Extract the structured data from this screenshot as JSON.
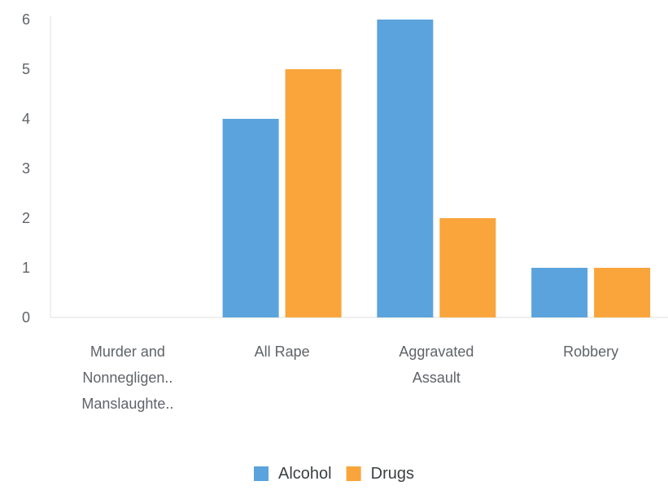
{
  "chart_data": {
    "type": "bar",
    "categories": [
      [
        "Murder and",
        "Nonnegligen..",
        "Manslaughte.."
      ],
      [
        "All Rape"
      ],
      [
        "Aggravated",
        "Assault"
      ],
      [
        "Robbery"
      ]
    ],
    "series": [
      {
        "name": "Alcohol",
        "color": "#5ba3dc",
        "values": [
          0,
          4,
          6,
          1
        ]
      },
      {
        "name": "Drugs",
        "color": "#f9a53b",
        "values": [
          0,
          5,
          2,
          1
        ]
      }
    ],
    "yticks": [
      0,
      1,
      2,
      3,
      4,
      5,
      6
    ],
    "ylim": [
      0,
      6
    ],
    "grid": false,
    "legend": "bottom-center"
  }
}
